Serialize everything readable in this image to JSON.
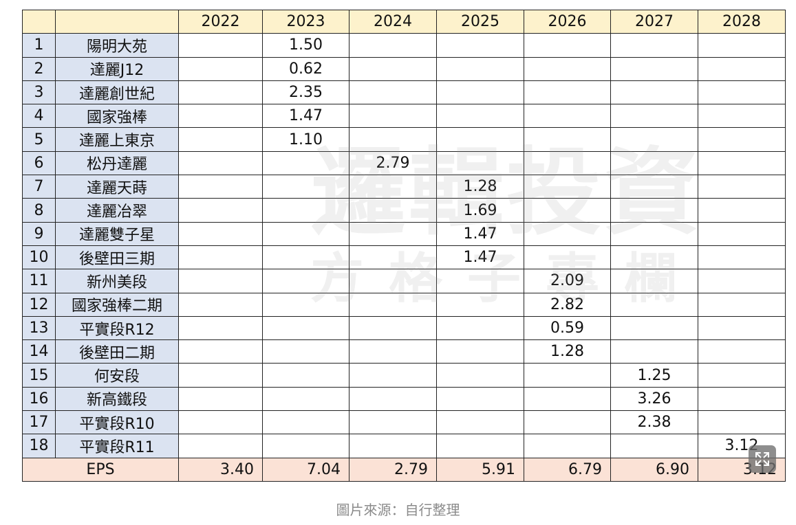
{
  "table": {
    "years": [
      "2022",
      "2023",
      "2024",
      "2025",
      "2026",
      "2027",
      "2028"
    ],
    "rows": [
      {
        "idx": "1",
        "name": "陽明大苑",
        "values": [
          "",
          "1.50",
          "",
          "",
          "",
          "",
          ""
        ]
      },
      {
        "idx": "2",
        "name": "達麗J12",
        "values": [
          "",
          "0.62",
          "",
          "",
          "",
          "",
          ""
        ]
      },
      {
        "idx": "3",
        "name": "達麗創世紀",
        "values": [
          "",
          "2.35",
          "",
          "",
          "",
          "",
          ""
        ]
      },
      {
        "idx": "4",
        "name": "國家強棒",
        "values": [
          "",
          "1.47",
          "",
          "",
          "",
          "",
          ""
        ]
      },
      {
        "idx": "5",
        "name": "達麗上東京",
        "values": [
          "",
          "1.10",
          "",
          "",
          "",
          "",
          ""
        ]
      },
      {
        "idx": "6",
        "name": "松丹達麗",
        "values": [
          "",
          "",
          "2.79",
          "",
          "",
          "",
          ""
        ]
      },
      {
        "idx": "7",
        "name": "達麗天蒔",
        "values": [
          "",
          "",
          "",
          "1.28",
          "",
          "",
          ""
        ]
      },
      {
        "idx": "8",
        "name": "達麗冶翠",
        "values": [
          "",
          "",
          "",
          "1.69",
          "",
          "",
          ""
        ]
      },
      {
        "idx": "9",
        "name": "達麗雙子星",
        "values": [
          "",
          "",
          "",
          "1.47",
          "",
          "",
          ""
        ]
      },
      {
        "idx": "10",
        "name": "後壁田三期",
        "values": [
          "",
          "",
          "",
          "1.47",
          "",
          "",
          ""
        ]
      },
      {
        "idx": "11",
        "name": "新州美段",
        "values": [
          "",
          "",
          "",
          "",
          "2.09",
          "",
          ""
        ]
      },
      {
        "idx": "12",
        "name": "國家強棒二期",
        "values": [
          "",
          "",
          "",
          "",
          "2.82",
          "",
          ""
        ]
      },
      {
        "idx": "13",
        "name": "平實段R12",
        "values": [
          "",
          "",
          "",
          "",
          "0.59",
          "",
          ""
        ]
      },
      {
        "idx": "14",
        "name": "後壁田二期",
        "values": [
          "",
          "",
          "",
          "",
          "1.28",
          "",
          ""
        ]
      },
      {
        "idx": "15",
        "name": "何安段",
        "values": [
          "",
          "",
          "",
          "",
          "",
          "1.25",
          ""
        ]
      },
      {
        "idx": "16",
        "name": "新高鐵段",
        "values": [
          "",
          "",
          "",
          "",
          "",
          "3.26",
          ""
        ]
      },
      {
        "idx": "17",
        "name": "平實段R10",
        "values": [
          "",
          "",
          "",
          "",
          "",
          "2.38",
          ""
        ]
      },
      {
        "idx": "18",
        "name": "平實段R11",
        "values": [
          "",
          "",
          "",
          "",
          "",
          "",
          "3.12"
        ]
      }
    ],
    "eps_label": "EPS",
    "eps_values": [
      "3.40",
      "7.04",
      "2.79",
      "5.91",
      "6.79",
      "6.90",
      "3.12"
    ]
  },
  "watermark": {
    "line1": "邏輯投資",
    "line2": "方格子專欄"
  },
  "caption": "圖片來源：自行整理",
  "colors": {
    "header_bg": "#fdf2cc",
    "project_bg": "#dbe3f1",
    "eps_bg": "#fbe2d6"
  },
  "icons": {
    "expand": "expand-icon"
  }
}
